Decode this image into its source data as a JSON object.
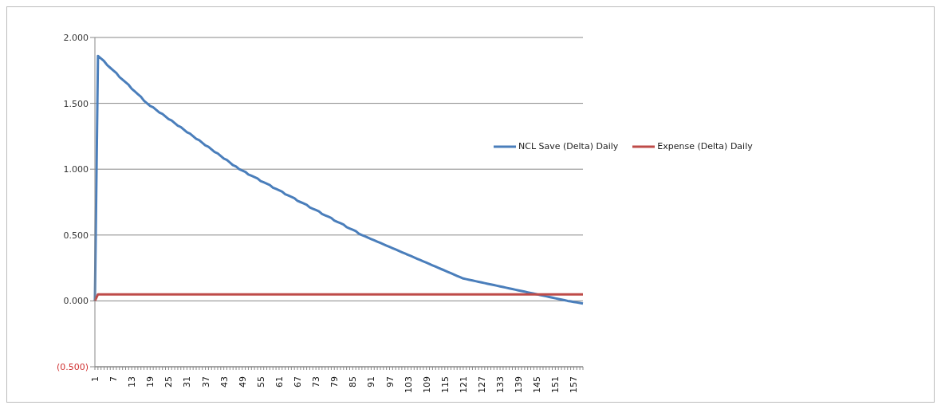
{
  "chart_data": {
    "type": "line",
    "categories": [
      "1",
      null,
      null,
      null,
      null,
      null,
      "7",
      null,
      null,
      null,
      null,
      null,
      "13",
      null,
      null,
      null,
      null,
      null,
      "19",
      null,
      null,
      null,
      null,
      null,
      "25",
      null,
      null,
      null,
      null,
      null,
      "31",
      null,
      null,
      null,
      null,
      null,
      "37",
      null,
      null,
      null,
      null,
      null,
      "43",
      null,
      null,
      null,
      null,
      null,
      "49",
      null,
      null,
      null,
      null,
      null,
      "55",
      null,
      null,
      null,
      null,
      null,
      "61",
      null,
      null,
      null,
      null,
      null,
      "67",
      null,
      null,
      null,
      null,
      null,
      "73",
      null,
      null,
      null,
      null,
      null,
      "79",
      null,
      null,
      null,
      null,
      null,
      "85",
      null,
      null,
      null,
      null,
      null,
      "91",
      null,
      null,
      null,
      null,
      null,
      "97",
      null,
      null,
      null,
      null,
      null,
      "103",
      null,
      null,
      null,
      null,
      null,
      "109",
      null,
      null,
      null,
      null,
      null,
      "115",
      null,
      null,
      null,
      null,
      null,
      "121",
      null,
      null,
      null,
      null,
      null,
      "127",
      null,
      null,
      null,
      null,
      null,
      "133",
      null,
      null,
      null,
      null,
      null,
      "139",
      null,
      null,
      null,
      null,
      null,
      "145",
      null,
      null,
      null,
      null,
      null,
      "151",
      null,
      null,
      null,
      null,
      null,
      "157",
      null,
      null,
      null
    ],
    "series": [
      {
        "name": "NCL Save (Delta) Daily",
        "color": "#4a7ebb",
        "values": [
          0,
          1.86,
          1.84,
          1.82,
          1.79,
          1.77,
          1.75,
          1.73,
          1.7,
          1.68,
          1.66,
          1.64,
          1.61,
          1.59,
          1.57,
          1.55,
          1.52,
          1.5,
          1.48,
          1.47,
          1.45,
          1.43,
          1.42,
          1.4,
          1.38,
          1.37,
          1.35,
          1.33,
          1.32,
          1.3,
          1.28,
          1.27,
          1.25,
          1.23,
          1.22,
          1.2,
          1.18,
          1.17,
          1.15,
          1.13,
          1.12,
          1.1,
          1.08,
          1.07,
          1.05,
          1.03,
          1.02,
          1.0,
          0.99,
          0.98,
          0.96,
          0.95,
          0.94,
          0.93,
          0.91,
          0.9,
          0.89,
          0.88,
          0.86,
          0.85,
          0.84,
          0.83,
          0.81,
          0.8,
          0.79,
          0.78,
          0.76,
          0.75,
          0.74,
          0.73,
          0.71,
          0.7,
          0.69,
          0.68,
          0.66,
          0.65,
          0.64,
          0.63,
          0.61,
          0.6,
          0.59,
          0.58,
          0.56,
          0.55,
          0.54,
          0.53,
          0.51,
          0.5,
          0.49,
          0.48,
          0.47,
          0.46,
          0.45,
          0.44,
          0.43,
          0.42,
          0.41,
          0.4,
          0.39,
          0.38,
          0.37,
          0.36,
          0.35,
          0.34,
          0.33,
          0.32,
          0.31,
          0.3,
          0.29,
          0.28,
          0.27,
          0.26,
          0.25,
          0.24,
          0.23,
          0.22,
          0.21,
          0.2,
          0.19,
          0.18,
          0.17,
          0.165,
          0.16,
          0.155,
          0.15,
          0.145,
          0.14,
          0.135,
          0.13,
          0.125,
          0.12,
          0.115,
          0.11,
          0.105,
          0.1,
          0.095,
          0.09,
          0.085,
          0.08,
          0.075,
          0.07,
          0.065,
          0.06,
          0.055,
          0.05,
          0.045,
          0.04,
          0.035,
          0.03,
          0.025,
          0.02,
          0.015,
          0.01,
          0.005,
          0,
          -0.004,
          -0.008,
          -0.012,
          -0.016,
          -0.02
        ]
      },
      {
        "name": "Expense (Delta) Daily",
        "color": "#be4b48",
        "values": [
          0,
          0.05,
          0.05,
          0.05,
          0.05,
          0.05,
          0.05,
          0.05,
          0.05,
          0.05,
          0.05,
          0.05,
          0.05,
          0.05,
          0.05,
          0.05,
          0.05,
          0.05,
          0.05,
          0.05,
          0.05,
          0.05,
          0.05,
          0.05,
          0.05,
          0.05,
          0.05,
          0.05,
          0.05,
          0.05,
          0.05,
          0.05,
          0.05,
          0.05,
          0.05,
          0.05,
          0.05,
          0.05,
          0.05,
          0.05,
          0.05,
          0.05,
          0.05,
          0.05,
          0.05,
          0.05,
          0.05,
          0.05,
          0.05,
          0.05,
          0.05,
          0.05,
          0.05,
          0.05,
          0.05,
          0.05,
          0.05,
          0.05,
          0.05,
          0.05,
          0.05,
          0.05,
          0.05,
          0.05,
          0.05,
          0.05,
          0.05,
          0.05,
          0.05,
          0.05,
          0.05,
          0.05,
          0.05,
          0.05,
          0.05,
          0.05,
          0.05,
          0.05,
          0.05,
          0.05,
          0.05,
          0.05,
          0.05,
          0.05,
          0.05,
          0.05,
          0.05,
          0.05,
          0.05,
          0.05,
          0.05,
          0.05,
          0.05,
          0.05,
          0.05,
          0.05,
          0.05,
          0.05,
          0.05,
          0.05,
          0.05,
          0.05,
          0.05,
          0.05,
          0.05,
          0.05,
          0.05,
          0.05,
          0.05,
          0.05,
          0.05,
          0.05,
          0.05,
          0.05,
          0.05,
          0.05,
          0.05,
          0.05,
          0.05,
          0.05,
          0.05,
          0.05,
          0.05,
          0.05,
          0.05,
          0.05,
          0.05,
          0.05,
          0.05,
          0.05,
          0.05,
          0.05,
          0.05,
          0.05,
          0.05,
          0.05,
          0.05,
          0.05,
          0.05,
          0.05,
          0.05,
          0.05,
          0.05,
          0.05,
          0.05,
          0.05,
          0.05,
          0.05,
          0.05,
          0.05,
          0.05,
          0.05,
          0.05,
          0.05,
          0.05,
          0.05,
          0.05,
          0.05,
          0.05,
          0.05
        ]
      }
    ],
    "ylim": [
      -0.5,
      2
    ],
    "yticks": [
      {
        "value": -0.5,
        "label": "(0.500)"
      },
      {
        "value": 0,
        "label": "0.000"
      },
      {
        "value": 0.5,
        "label": "0.500"
      },
      {
        "value": 1,
        "label": "1.000"
      },
      {
        "value": 1.5,
        "label": "1.500"
      },
      {
        "value": 2,
        "label": "2.000"
      }
    ],
    "grid": "y",
    "legend": "right",
    "marker": "none",
    "line_style": "solid"
  }
}
